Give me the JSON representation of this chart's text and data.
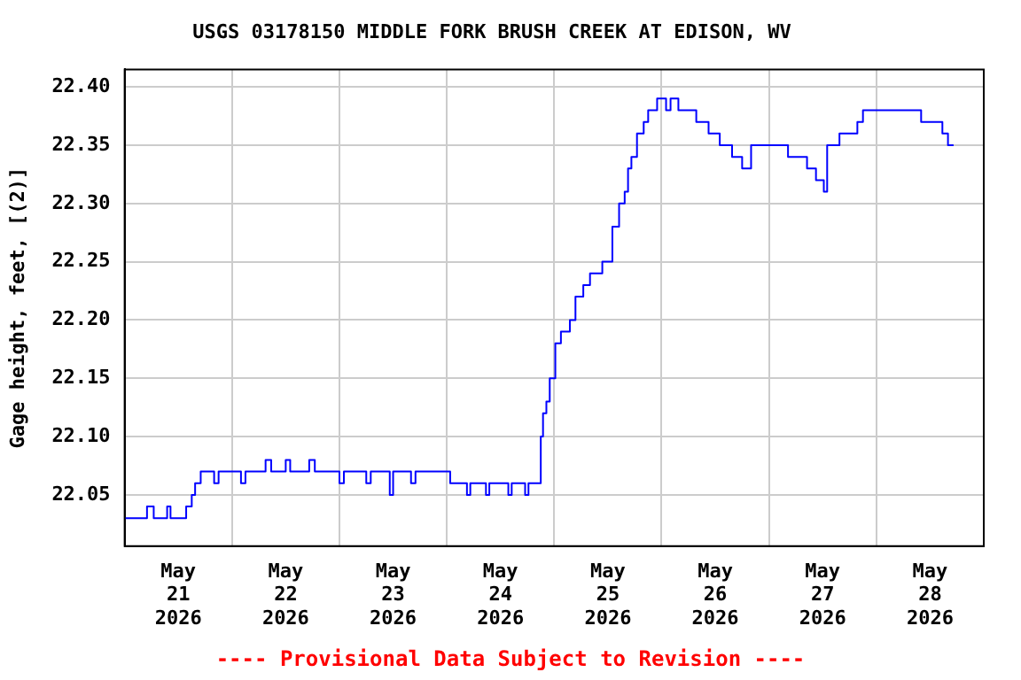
{
  "chart_data": {
    "type": "step",
    "title": "USGS 03178150 MIDDLE FORK BRUSH CREEK AT EDISON, WV",
    "ylabel": "Gage height, feet, [(2)]",
    "annotations": [
      "---- Provisional Data Subject to Revision ----"
    ],
    "x": [
      "2026-05-21T00:00",
      "2026-05-21T05:00",
      "2026-05-21T06:30",
      "2026-05-21T09:30",
      "2026-05-21T10:15",
      "2026-05-21T13:45",
      "2026-05-21T15:00",
      "2026-05-21T15:45",
      "2026-05-21T17:00",
      "2026-05-21T20:00",
      "2026-05-21T21:00",
      "2026-05-22T02:00",
      "2026-05-22T03:00",
      "2026-05-22T07:30",
      "2026-05-22T08:45",
      "2026-05-22T12:00",
      "2026-05-22T13:00",
      "2026-05-22T17:15",
      "2026-05-22T18:30",
      "2026-05-23T00:00",
      "2026-05-23T01:00",
      "2026-05-23T06:00",
      "2026-05-23T07:00",
      "2026-05-23T11:15",
      "2026-05-23T12:00",
      "2026-05-23T16:00",
      "2026-05-23T17:00",
      "2026-05-24T00:45",
      "2026-05-24T04:30",
      "2026-05-24T05:15",
      "2026-05-24T08:45",
      "2026-05-24T09:30",
      "2026-05-24T13:45",
      "2026-05-24T14:30",
      "2026-05-24T17:30",
      "2026-05-24T18:15",
      "2026-05-24T21:00",
      "2026-05-24T21:30",
      "2026-05-24T22:15",
      "2026-05-24T23:00",
      "2026-05-25T00:15",
      "2026-05-25T01:30",
      "2026-05-25T03:30",
      "2026-05-25T04:45",
      "2026-05-25T06:30",
      "2026-05-25T08:00",
      "2026-05-25T10:45",
      "2026-05-25T13:00",
      "2026-05-25T14:30",
      "2026-05-25T15:45",
      "2026-05-25T16:30",
      "2026-05-25T17:15",
      "2026-05-25T18:30",
      "2026-05-25T20:00",
      "2026-05-25T21:00",
      "2026-05-25T23:00",
      "2026-05-26T01:00",
      "2026-05-26T02:00",
      "2026-05-26T03:45",
      "2026-05-26T07:45",
      "2026-05-26T10:30",
      "2026-05-26T13:00",
      "2026-05-26T15:45",
      "2026-05-26T18:00",
      "2026-05-26T20:00",
      "2026-05-27T04:15",
      "2026-05-27T08:30",
      "2026-05-27T10:30",
      "2026-05-27T12:15",
      "2026-05-27T13:00",
      "2026-05-27T15:45",
      "2026-05-27T19:45",
      "2026-05-27T21:00",
      "2026-05-28T10:00",
      "2026-05-28T14:45",
      "2026-05-28T16:00",
      "2026-05-28T17:15"
    ],
    "series": [
      {
        "color": "#0000ff",
        "values": [
          22.03,
          22.04,
          22.03,
          22.04,
          22.03,
          22.04,
          22.05,
          22.06,
          22.07,
          22.06,
          22.07,
          22.06,
          22.07,
          22.08,
          22.07,
          22.08,
          22.07,
          22.08,
          22.07,
          22.06,
          22.07,
          22.06,
          22.07,
          22.05,
          22.07,
          22.06,
          22.07,
          22.06,
          22.05,
          22.06,
          22.05,
          22.06,
          22.05,
          22.06,
          22.05,
          22.06,
          22.1,
          22.12,
          22.13,
          22.15,
          22.18,
          22.19,
          22.2,
          22.22,
          22.23,
          22.24,
          22.25,
          22.28,
          22.3,
          22.31,
          22.33,
          22.34,
          22.36,
          22.37,
          22.38,
          22.39,
          22.38,
          22.39,
          22.38,
          22.37,
          22.36,
          22.35,
          22.34,
          22.33,
          22.35,
          22.34,
          22.33,
          22.32,
          22.31,
          22.35,
          22.36,
          22.37,
          22.38,
          22.37,
          22.36,
          22.35,
          22.35
        ]
      }
    ],
    "xlim": [
      "2026-05-21T00:00",
      "2026-05-29T00:00"
    ],
    "xticks": [
      {
        "value": "2026-05-21T00:00",
        "label": null
      },
      {
        "value": "2026-05-21T12:00",
        "label": "May\n21\n2026"
      },
      {
        "value": "2026-05-22T00:00",
        "label": null
      },
      {
        "value": "2026-05-22T12:00",
        "label": "May\n22\n2026"
      },
      {
        "value": "2026-05-23T00:00",
        "label": null
      },
      {
        "value": "2026-05-23T12:00",
        "label": "May\n23\n2026"
      },
      {
        "value": "2026-05-24T00:00",
        "label": null
      },
      {
        "value": "2026-05-24T12:00",
        "label": "May\n24\n2026"
      },
      {
        "value": "2026-05-25T00:00",
        "label": null
      },
      {
        "value": "2026-05-25T12:00",
        "label": "May\n25\n2026"
      },
      {
        "value": "2026-05-26T00:00",
        "label": null
      },
      {
        "value": "2026-05-26T12:00",
        "label": "May\n26\n2026"
      },
      {
        "value": "2026-05-27T00:00",
        "label": null
      },
      {
        "value": "2026-05-27T12:00",
        "label": "May\n27\n2026"
      },
      {
        "value": "2026-05-28T00:00",
        "label": null
      },
      {
        "value": "2026-05-28T12:00",
        "label": "May\n28\n2026"
      },
      {
        "value": "2026-05-29T00:00",
        "label": null
      }
    ],
    "ylim": [
      22.006,
      22.415
    ],
    "yticks": [
      {
        "value": 22.05,
        "label": "22.05"
      },
      {
        "value": 22.1,
        "label": "22.10"
      },
      {
        "value": 22.15,
        "label": "22.15"
      },
      {
        "value": 22.2,
        "label": "22.20"
      },
      {
        "value": 22.25,
        "label": "22.25"
      },
      {
        "value": 22.3,
        "label": "22.30"
      },
      {
        "value": 22.35,
        "label": "22.35"
      },
      {
        "value": 22.4,
        "label": "22.40"
      }
    ],
    "grid": true,
    "marker": "none",
    "line_style": "solid",
    "legend": false
  }
}
